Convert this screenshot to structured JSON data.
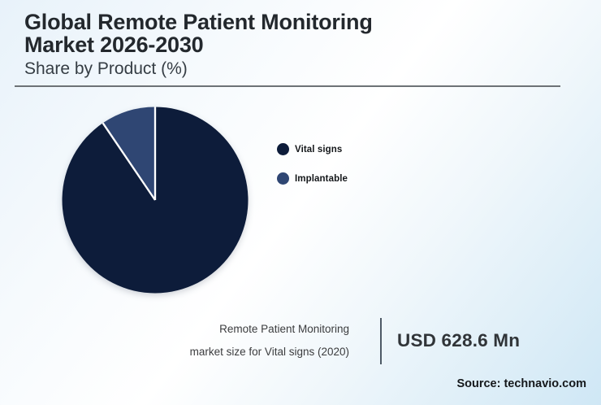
{
  "header": {
    "title_line1": "Global Remote Patient Monitoring",
    "title_line2": "Market 2026-2030",
    "subtitle": "Share by Product (%)"
  },
  "chart_data": {
    "type": "pie",
    "title": "Global Remote Patient Monitoring Market 2026-2030",
    "subtitle": "Share by Product (%)",
    "categories": [
      "Vital signs",
      "Implantable"
    ],
    "values": [
      90.5,
      9.5
    ],
    "unit": "%",
    "colors": [
      "#0d1c3a",
      "#2f4673"
    ],
    "separator_color": "#ffffff",
    "start_angle_deg": 0,
    "direction": "clockwise",
    "legend_position": "right"
  },
  "legend": {
    "items": [
      {
        "label": "Vital signs"
      },
      {
        "label": "Implantable"
      }
    ]
  },
  "callout": {
    "caption_line1": "Remote Patient Monitoring",
    "caption_line2": "market size for Vital signs (2020)",
    "value": "USD 628.6 Mn"
  },
  "footer": {
    "source": "Source: technavio.com"
  },
  "colors": {
    "background_top_left": "#e8f2fa",
    "background_bottom_right": "#cfe7f5",
    "rule": "#6d7276",
    "divider": "#4e5a66",
    "title_text": "#23282d"
  }
}
